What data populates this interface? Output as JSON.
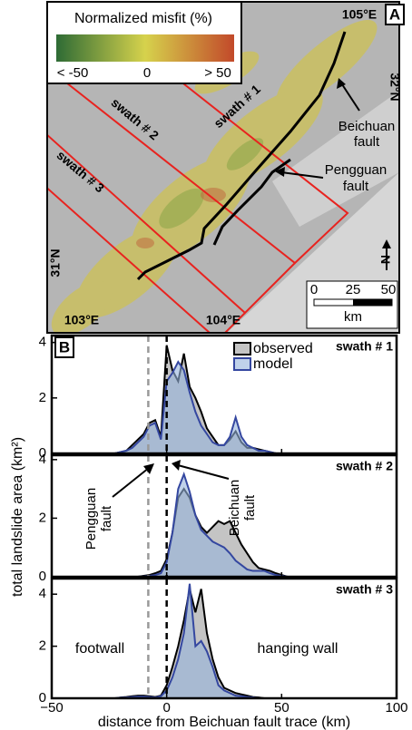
{
  "map": {
    "panel_label": "A",
    "colorbar": {
      "title": "Normalized misfit (%)",
      "labels": [
        "< -50",
        "0",
        "> 50"
      ]
    },
    "lon_labels": [
      "105°E",
      "103°E",
      "104°E"
    ],
    "lat_labels": [
      "32°N",
      "31°N"
    ],
    "beichuan": [
      "Beichuan",
      "fault"
    ],
    "pengguan": [
      "Pengguan",
      "fault"
    ],
    "swaths": [
      "swath # 1",
      "swath # 2",
      "swath # 3"
    ],
    "scale": {
      "ticks": [
        "0",
        "25",
        "50"
      ],
      "unit": "km"
    },
    "north": "N"
  },
  "chart_data": {
    "type": "area",
    "panel_label": "B",
    "xlabel": "distance from Beichuan fault trace (km)",
    "ylabel": "total landslide area (km²)",
    "xlim": [
      -50,
      100
    ],
    "xticks": [
      {
        "value": -50,
        "label": "−50"
      },
      0,
      50,
      100
    ],
    "x": [
      -30,
      -27.5,
      -25,
      -22.5,
      -20,
      -17.5,
      -15,
      -12.5,
      -10,
      -7.5,
      -5,
      -2.5,
      0,
      2.5,
      5,
      7.5,
      10,
      12.5,
      15,
      17.5,
      20,
      22.5,
      25,
      27.5,
      30,
      32.5,
      35,
      37.5,
      40,
      42.5,
      45,
      47.5,
      50,
      52.5,
      55,
      57.5,
      60,
      62.5,
      65,
      67.5,
      70
    ],
    "series": [
      {
        "name": "observed",
        "color": "#000000",
        "fill": "#c4c4c4"
      },
      {
        "name": "model",
        "color": "#3447a0",
        "fill": "rgba(150,180,220,0.6)"
      }
    ],
    "vlines": [
      {
        "x": -8,
        "color": "#999999"
      },
      {
        "x": 0,
        "color": "#000000"
      }
    ],
    "annotations": {
      "pengguan": [
        "Pengguan",
        "fault"
      ],
      "beichuan": [
        "Beichuan",
        "fault"
      ],
      "footwall": "footwall",
      "hanging_wall": "hanging wall"
    },
    "panels": [
      {
        "title": "swath # 1",
        "ylim": [
          0,
          4.25
        ],
        "yticks": [
          0,
          2,
          4
        ],
        "values": [
          [
            0,
            0,
            0,
            0,
            0.05,
            0.1,
            0.3,
            0.5,
            0.7,
            1.1,
            1.2,
            0.6,
            3.9,
            3.0,
            2.6,
            3.6,
            2.4,
            2.0,
            1.5,
            0.9,
            0.6,
            0.3,
            0.3,
            0.5,
            0.8,
            0.4,
            0.2,
            0.2,
            0.15,
            0.1,
            0.05,
            0,
            0,
            0,
            0,
            0,
            0,
            0,
            0,
            0,
            0
          ],
          [
            0,
            0,
            0,
            0,
            0.05,
            0.1,
            0.2,
            0.4,
            0.6,
            1.0,
            1.1,
            0.5,
            2.6,
            2.9,
            3.3,
            3.0,
            2.2,
            1.5,
            1.0,
            0.7,
            0.4,
            0.3,
            0.3,
            0.6,
            1.3,
            0.6,
            0.3,
            0.2,
            0.1,
            0.1,
            0.05,
            0,
            0,
            0,
            0,
            0,
            0,
            0,
            0,
            0,
            0
          ]
        ]
      },
      {
        "title": "swath # 2",
        "ylim": [
          0,
          4.15
        ],
        "yticks": [
          0,
          2,
          4
        ],
        "values": [
          [
            0,
            0,
            0,
            0,
            0,
            0,
            0,
            0,
            0.03,
            0.06,
            0.12,
            0.2,
            0.6,
            1.5,
            2.7,
            3.0,
            2.7,
            2.1,
            1.7,
            1.5,
            1.7,
            1.9,
            1.8,
            1.9,
            1.5,
            1.1,
            0.8,
            0.5,
            0.3,
            0.25,
            0.2,
            0.12,
            0.06,
            0,
            0,
            0,
            0,
            0,
            0,
            0,
            0
          ],
          [
            0,
            0,
            0,
            0,
            0,
            0,
            0,
            0,
            0.01,
            0.03,
            0.06,
            0.12,
            0.5,
            1.5,
            3.0,
            3.5,
            2.9,
            2.1,
            1.6,
            1.4,
            1.2,
            1.1,
            1.0,
            0.8,
            0.55,
            0.4,
            0.25,
            0.2,
            0.2,
            0.2,
            0.12,
            0.06,
            0.03,
            0,
            0,
            0,
            0,
            0,
            0,
            0,
            0
          ]
        ]
      },
      {
        "title": "swath # 3",
        "ylim": [
          0,
          4.6
        ],
        "yticks": [
          0,
          2,
          4
        ],
        "values": [
          [
            0,
            0,
            0,
            0,
            0.03,
            0.05,
            0.08,
            0.1,
            0.1,
            0.08,
            0.05,
            0.1,
            0.5,
            1.2,
            2.0,
            3.0,
            4.2,
            3.3,
            4.2,
            2.5,
            1.5,
            0.8,
            0.4,
            0.3,
            0.2,
            0.15,
            0.1,
            0.05,
            0.03,
            0,
            0,
            0,
            0,
            0,
            0,
            0,
            0,
            0,
            0,
            0,
            0
          ],
          [
            0,
            0,
            0,
            0,
            0.02,
            0.03,
            0.05,
            0.06,
            0.06,
            0.05,
            0.03,
            0.08,
            0.3,
            0.8,
            1.5,
            2.5,
            4.4,
            2.0,
            2.2,
            1.8,
            1.2,
            0.5,
            0.3,
            0.2,
            0.1,
            0.08,
            0.05,
            0.03,
            0,
            0,
            0,
            0,
            0,
            0,
            0,
            0,
            0,
            0,
            0,
            0,
            0
          ]
        ]
      }
    ]
  }
}
